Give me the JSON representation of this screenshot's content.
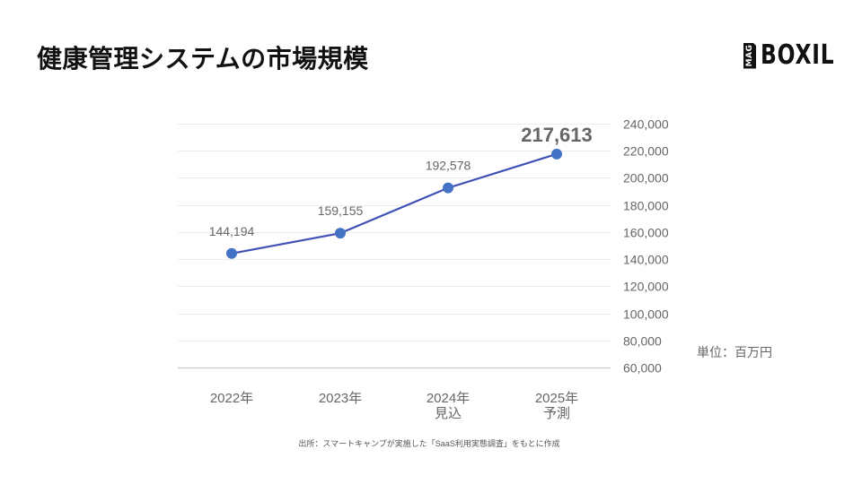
{
  "header": {
    "title": "健康管理システムの市場規模",
    "logo": {
      "badge": "MAG",
      "text": "BOXIL"
    }
  },
  "unit_label": "単位：百万円",
  "source_note": "出所：スマートキャンプが実施した「SaaS利用実態調査」をもとに作成",
  "colors": {
    "line": "#3f51b5",
    "marker": "#4472c4",
    "gridline": "#ececec",
    "baseline": "#c8c8c8",
    "label_text": "#666666",
    "highlight_label": "#666666"
  },
  "chart_data": {
    "type": "line",
    "title": "健康管理システムの市場規模",
    "xlabel": "",
    "ylabel": "単位：百万円",
    "categories": [
      "2022年",
      "2023年",
      "2024年\n見込",
      "2025年\n予測"
    ],
    "category_lines": [
      [
        "2022年"
      ],
      [
        "2023年"
      ],
      [
        "2024年",
        "見込"
      ],
      [
        "2025年",
        "予測"
      ]
    ],
    "series": [
      {
        "name": "市場規模",
        "values": [
          144194,
          159155,
          192578,
          217613
        ],
        "labels": [
          "144,194",
          "159,155",
          "192,578",
          "217,613"
        ]
      }
    ],
    "highlight_index": 3,
    "ylim": [
      60000,
      240000
    ],
    "yticks": [
      60000,
      80000,
      100000,
      120000,
      140000,
      160000,
      180000,
      200000,
      220000,
      240000
    ],
    "ytick_labels": [
      "60,000",
      "80,000",
      "100,000",
      "120,000",
      "140,000",
      "160,000",
      "180,000",
      "200,000",
      "220,000",
      "240,000"
    ],
    "y_axis_position": "right",
    "grid": true,
    "legend": "none"
  }
}
